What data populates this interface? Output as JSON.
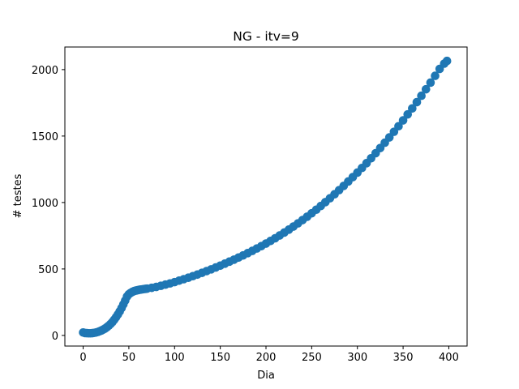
{
  "chart_data": {
    "type": "scatter",
    "title": "NG - itv=9",
    "xlabel": "Dia",
    "ylabel": "# testes",
    "xlim": [
      -20,
      420
    ],
    "ylim": [
      -80,
      2170
    ],
    "xticks": [
      0,
      50,
      100,
      150,
      200,
      250,
      300,
      350,
      400
    ],
    "yticks": [
      0,
      500,
      1000,
      1500,
      2000
    ],
    "grid": false,
    "legend": "none",
    "marker_color": "#1f77b4",
    "series": [
      {
        "points": [
          [
            0,
            22
          ],
          [
            2,
            18
          ],
          [
            4,
            17
          ],
          [
            6,
            16
          ],
          [
            8,
            16
          ],
          [
            10,
            17
          ],
          [
            12,
            19
          ],
          [
            14,
            22
          ],
          [
            16,
            26
          ],
          [
            18,
            31
          ],
          [
            20,
            37
          ],
          [
            22,
            44
          ],
          [
            24,
            52
          ],
          [
            26,
            62
          ],
          [
            28,
            73
          ],
          [
            30,
            86
          ],
          [
            32,
            101
          ],
          [
            34,
            118
          ],
          [
            36,
            137
          ],
          [
            38,
            158
          ],
          [
            40,
            181
          ],
          [
            42,
            206
          ],
          [
            44,
            233
          ],
          [
            46,
            262
          ],
          [
            48,
            293
          ],
          [
            50,
            310
          ],
          [
            52,
            320
          ],
          [
            54,
            328
          ],
          [
            56,
            334
          ],
          [
            58,
            338
          ],
          [
            60,
            341
          ],
          [
            62,
            344
          ],
          [
            64,
            346
          ],
          [
            66,
            348
          ],
          [
            68,
            350
          ],
          [
            70,
            352
          ],
          [
            75,
            358
          ],
          [
            80,
            365
          ],
          [
            85,
            373
          ],
          [
            90,
            382
          ],
          [
            95,
            391
          ],
          [
            100,
            401
          ],
          [
            105,
            412
          ],
          [
            110,
            423
          ],
          [
            115,
            434
          ],
          [
            120,
            446
          ],
          [
            125,
            458
          ],
          [
            130,
            471
          ],
          [
            135,
            484
          ],
          [
            140,
            497
          ],
          [
            145,
            511
          ],
          [
            150,
            525
          ],
          [
            155,
            540
          ],
          [
            160,
            555
          ],
          [
            165,
            570
          ],
          [
            170,
            586
          ],
          [
            175,
            602
          ],
          [
            180,
            619
          ],
          [
            185,
            636
          ],
          [
            190,
            654
          ],
          [
            195,
            672
          ],
          [
            200,
            691
          ],
          [
            205,
            711
          ],
          [
            210,
            731
          ],
          [
            215,
            752
          ],
          [
            220,
            774
          ],
          [
            225,
            796
          ],
          [
            230,
            819
          ],
          [
            235,
            843
          ],
          [
            240,
            868
          ],
          [
            245,
            893
          ],
          [
            250,
            919
          ],
          [
            255,
            946
          ],
          [
            260,
            974
          ],
          [
            265,
            1003
          ],
          [
            270,
            1032
          ],
          [
            275,
            1062
          ],
          [
            280,
            1093
          ],
          [
            285,
            1125
          ],
          [
            290,
            1158
          ],
          [
            295,
            1191
          ],
          [
            300,
            1225
          ],
          [
            305,
            1260
          ],
          [
            310,
            1296
          ],
          [
            315,
            1333
          ],
          [
            320,
            1371
          ],
          [
            325,
            1410
          ],
          [
            330,
            1450
          ],
          [
            335,
            1490
          ],
          [
            340,
            1532
          ],
          [
            345,
            1574
          ],
          [
            350,
            1618
          ],
          [
            355,
            1663
          ],
          [
            360,
            1708
          ],
          [
            365,
            1755
          ],
          [
            370,
            1803
          ],
          [
            375,
            1852
          ],
          [
            380,
            1902
          ],
          [
            385,
            1953
          ],
          [
            390,
            2005
          ],
          [
            395,
            2045
          ],
          [
            398,
            2065
          ]
        ]
      }
    ]
  }
}
